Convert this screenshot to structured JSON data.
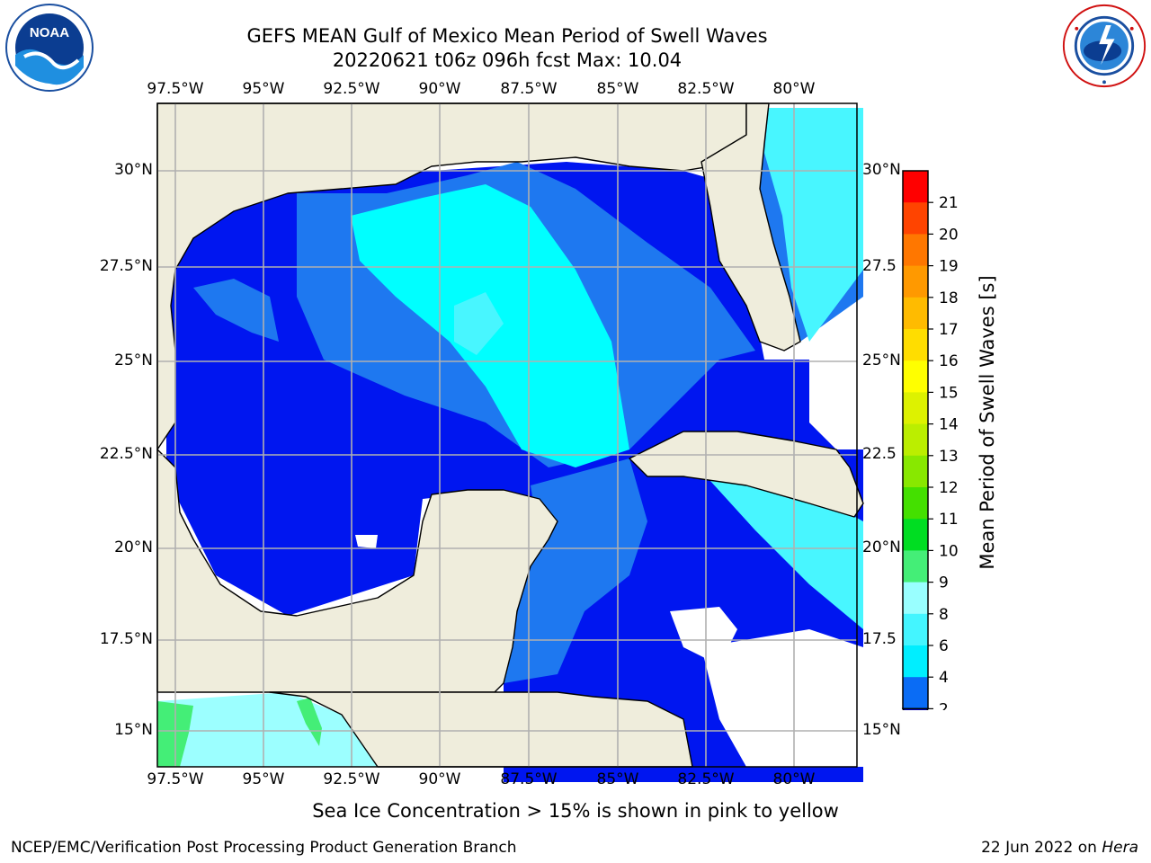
{
  "header": {
    "title_line1": "GEFS MEAN Gulf of Mexico Mean Period of Swell Waves",
    "title_line2": "20220621 t06z 096h fcst   Max: 10.04"
  },
  "logos": {
    "noaa": {
      "icon": "noaa-logo",
      "text": "NOAA"
    },
    "nws": {
      "icon": "nws-logo"
    }
  },
  "map": {
    "lon_labels": [
      "97.5°W",
      "95°W",
      "92.5°W",
      "90°W",
      "87.5°W",
      "85°W",
      "82.5°W",
      "80°W"
    ],
    "lat_labels_left": [
      "30°N",
      "27.5°N",
      "25°N",
      "22.5°N",
      "20°N",
      "17.5°N",
      "15°N"
    ],
    "lat_labels_right": [
      "30°N",
      "27.5",
      "25°N",
      "22.5",
      "20°N",
      "17.5",
      "15°N"
    ],
    "land_color": "#efeddc",
    "grid_color": "#b0b0b0"
  },
  "colorbar": {
    "label": "Mean Period of Swell Waves [s]",
    "ticks": [
      "2",
      "4",
      "6",
      "8",
      "9",
      "10",
      "11",
      "12",
      "13",
      "14",
      "15",
      "16",
      "17",
      "18",
      "19",
      "20",
      "21"
    ],
    "colors": [
      "#0a6cf5",
      "#00eeff",
      "#44f5ff",
      "#99ffff",
      "#44ee77",
      "#00dd22",
      "#44e000",
      "#88e800",
      "#bbee00",
      "#ddf200",
      "#ffff00",
      "#ffdd00",
      "#ffbb00",
      "#ff9900",
      "#ff7700",
      "#ff4400",
      "#ff0000"
    ],
    "under_color": "#0000ee"
  },
  "palette": {
    "deep_blue": "#0016f0",
    "mid_blue": "#1e78f0",
    "cyan": "#00ffff",
    "light_cyan": "#48f6ff",
    "pale_cyan": "#9cffff",
    "green": "#44ee77"
  },
  "note": "Sea Ice Concentration > 15% is shown in pink to yellow",
  "footer": {
    "left": "NCEP/EMC/Verification Post Processing Product Generation Branch",
    "date": "22 Jun 2022 on ",
    "host": "Hera"
  }
}
